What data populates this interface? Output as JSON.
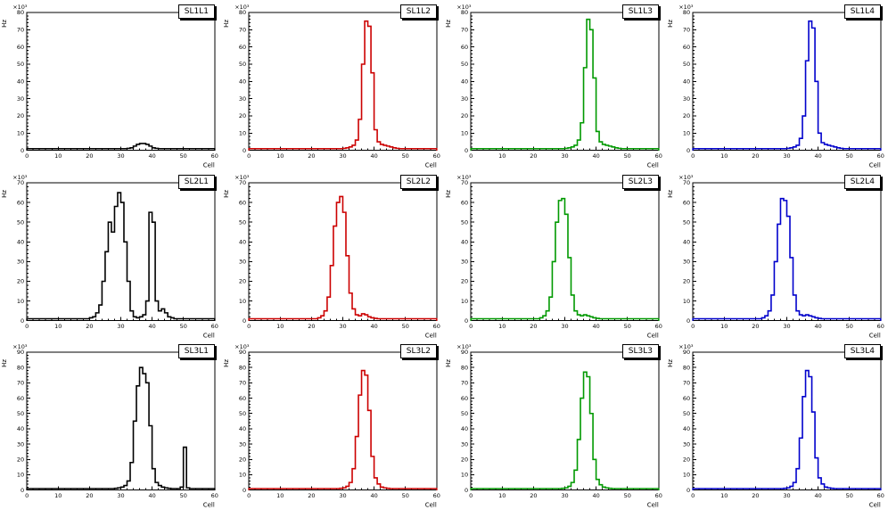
{
  "axes": {
    "ylabel": "Hz",
    "xlabel": "Cell",
    "scale_label": "×10³"
  },
  "chart_data": [
    {
      "type": "bar",
      "title": "SL1L1",
      "color": "#000000",
      "xlim": [
        0,
        60
      ],
      "ylim": [
        0,
        80
      ],
      "xtick": 10,
      "ytick": 10,
      "xlabel": "Cell",
      "ylabel": "Hz",
      "values": [
        1,
        1,
        1,
        1,
        1,
        1,
        1,
        1,
        1,
        1,
        1,
        1,
        1,
        1,
        1,
        1,
        1,
        1,
        1,
        1,
        1,
        1,
        1,
        1,
        1,
        1,
        1,
        1,
        1,
        1,
        1,
        1,
        1.2,
        1.5,
        2.5,
        3.5,
        4,
        4,
        3.5,
        2.5,
        1.5,
        1.2,
        1,
        1,
        1,
        1,
        1,
        1,
        1,
        1,
        1,
        1,
        1,
        1,
        1,
        1,
        1,
        1,
        1,
        1
      ]
    },
    {
      "type": "bar",
      "title": "SL1L2",
      "color": "#cc0000",
      "xlim": [
        0,
        60
      ],
      "ylim": [
        0,
        80
      ],
      "xtick": 10,
      "ytick": 10,
      "xlabel": "Cell",
      "ylabel": "Hz",
      "values": [
        1,
        1,
        1,
        1,
        1,
        1,
        1,
        1,
        1,
        1,
        1,
        1,
        1,
        1,
        1,
        1,
        1,
        1,
        1,
        1,
        1,
        1,
        1,
        1,
        1,
        1,
        1,
        1,
        1,
        1,
        1.2,
        1.5,
        2,
        3,
        6,
        18,
        50,
        75,
        72,
        45,
        12,
        5,
        3.5,
        3,
        2.5,
        2,
        1.5,
        1.2,
        1,
        1,
        1,
        1,
        1,
        1,
        1,
        1,
        1,
        1,
        1,
        1
      ]
    },
    {
      "type": "bar",
      "title": "SL1L3",
      "color": "#009900",
      "xlim": [
        0,
        60
      ],
      "ylim": [
        0,
        80
      ],
      "xtick": 10,
      "ytick": 10,
      "xlabel": "Cell",
      "ylabel": "Hz",
      "values": [
        1,
        1,
        1,
        1,
        1,
        1,
        1,
        1,
        1,
        1,
        1,
        1,
        1,
        1,
        1,
        1,
        1,
        1,
        1,
        1,
        1,
        1,
        1,
        1,
        1,
        1,
        1,
        1,
        1,
        1,
        1.2,
        1.5,
        2,
        3,
        6,
        16,
        48,
        76,
        70,
        42,
        11,
        5,
        3.5,
        3,
        2.5,
        2,
        1.5,
        1.2,
        1,
        1,
        1,
        1,
        1,
        1,
        1,
        1,
        1,
        1,
        1,
        1
      ]
    },
    {
      "type": "bar",
      "title": "SL1L4",
      "color": "#0000cc",
      "xlim": [
        0,
        60
      ],
      "ylim": [
        0,
        80
      ],
      "xtick": 10,
      "ytick": 10,
      "xlabel": "Cell",
      "ylabel": "Hz",
      "values": [
        1,
        1,
        1,
        1,
        1,
        1,
        1,
        1,
        1,
        1,
        1,
        1,
        1,
        1,
        1,
        1,
        1,
        1,
        1,
        1,
        1,
        1,
        1,
        1,
        1,
        1,
        1,
        1,
        1,
        1,
        1.2,
        1.5,
        2,
        3,
        7,
        20,
        52,
        75,
        71,
        40,
        10,
        4.5,
        3.5,
        3,
        2.5,
        2,
        1.5,
        1.2,
        1,
        1,
        1,
        1,
        1,
        1,
        1,
        1,
        1,
        1,
        1,
        1
      ]
    },
    {
      "type": "bar",
      "title": "SL2L1",
      "color": "#000000",
      "xlim": [
        0,
        60
      ],
      "ylim": [
        0,
        70
      ],
      "xtick": 10,
      "ytick": 10,
      "xlabel": "Cell",
      "ylabel": "Hz",
      "values": [
        1,
        1,
        1,
        1,
        1,
        1,
        1,
        1,
        1,
        1,
        1,
        1,
        1,
        1,
        1,
        1,
        1,
        1,
        1,
        1,
        1.5,
        2,
        4,
        8,
        20,
        35,
        50,
        45,
        58,
        65,
        60,
        40,
        20,
        5,
        2,
        1.5,
        2,
        3,
        10,
        55,
        50,
        10,
        5,
        6,
        4,
        2,
        1.5,
        1,
        1,
        1,
        1,
        1,
        1,
        1,
        1,
        1,
        1,
        1,
        1,
        1
      ]
    },
    {
      "type": "bar",
      "title": "SL2L2",
      "color": "#cc0000",
      "xlim": [
        0,
        60
      ],
      "ylim": [
        0,
        70
      ],
      "xtick": 10,
      "ytick": 10,
      "xlabel": "Cell",
      "ylabel": "Hz",
      "values": [
        1,
        1,
        1,
        1,
        1,
        1,
        1,
        1,
        1,
        1,
        1,
        1,
        1,
        1,
        1,
        1,
        1,
        1,
        1,
        1,
        1,
        1,
        1.5,
        2.5,
        5,
        12,
        28,
        48,
        60,
        63,
        55,
        33,
        14,
        6,
        3,
        2.5,
        3.5,
        3,
        2,
        1.5,
        1.2,
        1,
        1,
        1,
        1,
        1,
        1,
        1,
        1,
        1,
        1,
        1,
        1,
        1,
        1,
        1,
        1,
        1,
        1,
        1
      ]
    },
    {
      "type": "bar",
      "title": "SL2L3",
      "color": "#009900",
      "xlim": [
        0,
        60
      ],
      "ylim": [
        0,
        70
      ],
      "xtick": 10,
      "ytick": 10,
      "xlabel": "Cell",
      "ylabel": "Hz",
      "values": [
        1,
        1,
        1,
        1,
        1,
        1,
        1,
        1,
        1,
        1,
        1,
        1,
        1,
        1,
        1,
        1,
        1,
        1,
        1,
        1,
        1,
        1,
        1.5,
        2.5,
        5,
        12,
        30,
        50,
        61,
        62,
        54,
        32,
        13,
        5,
        3,
        2.5,
        3,
        2.5,
        2,
        1.5,
        1.2,
        1,
        1,
        1,
        1,
        1,
        1,
        1,
        1,
        1,
        1,
        1,
        1,
        1,
        1,
        1,
        1,
        1,
        1,
        1
      ]
    },
    {
      "type": "bar",
      "title": "SL2L4",
      "color": "#0000cc",
      "xlim": [
        0,
        60
      ],
      "ylim": [
        0,
        70
      ],
      "xtick": 10,
      "ytick": 10,
      "xlabel": "Cell",
      "ylabel": "Hz",
      "values": [
        1,
        1,
        1,
        1,
        1,
        1,
        1,
        1,
        1,
        1,
        1,
        1,
        1,
        1,
        1,
        1,
        1,
        1,
        1,
        1,
        1,
        1,
        1.5,
        2.5,
        5,
        13,
        30,
        49,
        62,
        61,
        53,
        32,
        13,
        5,
        3,
        2.5,
        3,
        2.5,
        2,
        1.5,
        1.2,
        1,
        1,
        1,
        1,
        1,
        1,
        1,
        1,
        1,
        1,
        1,
        1,
        1,
        1,
        1,
        1,
        1,
        1,
        1
      ]
    },
    {
      "type": "bar",
      "title": "SL3L1",
      "color": "#000000",
      "xlim": [
        0,
        60
      ],
      "ylim": [
        0,
        90
      ],
      "xtick": 10,
      "ytick": 10,
      "xlabel": "Cell",
      "ylabel": "Hz",
      "values": [
        1,
        1,
        1,
        1,
        1,
        1,
        1,
        1,
        1,
        1,
        1,
        1,
        1,
        1,
        1,
        1,
        1,
        1,
        1,
        1,
        1,
        1,
        1,
        1,
        1,
        1,
        1,
        1,
        1.2,
        1.5,
        2,
        3,
        6,
        18,
        45,
        68,
        80,
        76,
        70,
        42,
        14,
        5,
        3,
        2,
        1.5,
        1.2,
        1,
        1,
        1,
        2,
        28,
        1.5,
        1,
        1,
        1,
        1,
        1,
        1,
        1,
        1
      ]
    },
    {
      "type": "bar",
      "title": "SL3L2",
      "color": "#cc0000",
      "xlim": [
        0,
        60
      ],
      "ylim": [
        0,
        90
      ],
      "xtick": 10,
      "ytick": 10,
      "xlabel": "Cell",
      "ylabel": "Hz",
      "values": [
        1,
        1,
        1,
        1,
        1,
        1,
        1,
        1,
        1,
        1,
        1,
        1,
        1,
        1,
        1,
        1,
        1,
        1,
        1,
        1,
        1,
        1,
        1,
        1,
        1,
        1,
        1,
        1,
        1,
        1.2,
        1.5,
        2.5,
        5,
        14,
        35,
        62,
        78,
        75,
        52,
        22,
        8,
        4,
        2,
        1.5,
        1.2,
        1,
        1,
        1,
        1,
        1,
        1,
        1,
        1,
        1,
        1,
        1,
        1,
        1,
        1,
        1
      ]
    },
    {
      "type": "bar",
      "title": "SL3L3",
      "color": "#009900",
      "xlim": [
        0,
        60
      ],
      "ylim": [
        0,
        90
      ],
      "xtick": 10,
      "ytick": 10,
      "xlabel": "Cell",
      "ylabel": "Hz",
      "values": [
        1,
        1,
        1,
        1,
        1,
        1,
        1,
        1,
        1,
        1,
        1,
        1,
        1,
        1,
        1,
        1,
        1,
        1,
        1,
        1,
        1,
        1,
        1,
        1,
        1,
        1,
        1,
        1,
        1,
        1.2,
        1.5,
        2.5,
        5,
        13,
        33,
        60,
        77,
        74,
        50,
        20,
        7,
        3.5,
        2,
        1.5,
        1.2,
        1,
        1,
        1,
        1,
        1,
        1,
        1,
        1,
        1,
        1,
        1,
        1,
        1,
        1,
        1
      ]
    },
    {
      "type": "bar",
      "title": "SL3L4",
      "color": "#0000cc",
      "xlim": [
        0,
        60
      ],
      "ylim": [
        0,
        90
      ],
      "xtick": 10,
      "ytick": 10,
      "xlabel": "Cell",
      "ylabel": "Hz",
      "values": [
        1,
        1,
        1,
        1,
        1,
        1,
        1,
        1,
        1,
        1,
        1,
        1,
        1,
        1,
        1,
        1,
        1,
        1,
        1,
        1,
        1,
        1,
        1,
        1,
        1,
        1,
        1,
        1,
        1,
        1.2,
        1.5,
        2.5,
        5,
        14,
        34,
        61,
        78,
        74,
        51,
        21,
        8,
        4,
        2,
        1.5,
        1.2,
        1,
        1,
        1,
        1,
        1,
        1,
        1,
        1,
        1,
        1,
        1,
        1,
        1,
        1,
        1
      ]
    }
  ]
}
